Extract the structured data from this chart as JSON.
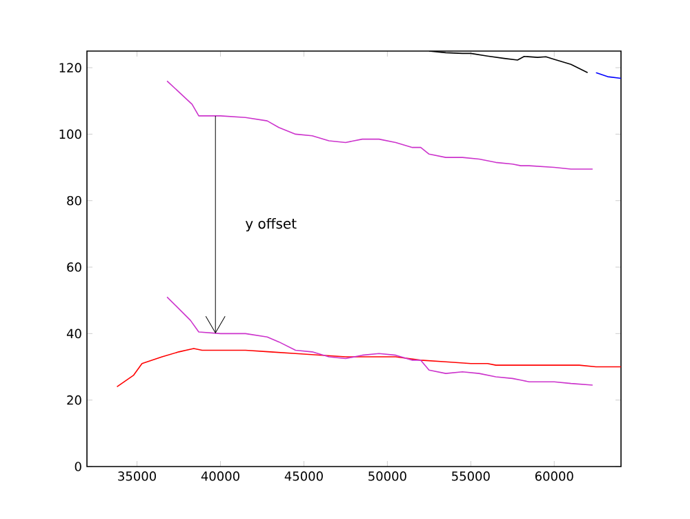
{
  "chart_data": {
    "type": "line",
    "xlim": [
      32000,
      64000
    ],
    "ylim": [
      0,
      125
    ],
    "xticks": [
      35000,
      40000,
      45000,
      50000,
      55000,
      60000
    ],
    "yticks": [
      0,
      20,
      40,
      60,
      80,
      100,
      120
    ],
    "grid": false,
    "marker": "none",
    "line_style": "solid",
    "series": [
      {
        "color": "#ff0000",
        "x": [
          33800,
          34800,
          35300,
          36500,
          37500,
          38400,
          38900,
          40000,
          41500,
          43000,
          44500,
          46000,
          47500,
          49000,
          50500,
          52000,
          53500,
          55000,
          56000,
          56500,
          57500,
          58500,
          60000,
          61500,
          62500,
          64000
        ],
        "values": [
          24,
          27.5,
          31,
          33,
          34.5,
          35.5,
          35,
          35,
          35,
          34.5,
          34,
          33.5,
          33,
          33,
          33,
          32,
          31.5,
          31,
          31,
          30.5,
          30.5,
          30.5,
          30.5,
          30.5,
          30,
          30
        ]
      },
      {
        "color": "#cc33cc",
        "x": [
          36800,
          38300,
          38700,
          40000,
          41500,
          42800,
          43500,
          44500,
          45500,
          46500,
          47500,
          48500,
          49500,
          50500,
          51500,
          52000,
          52500,
          53500,
          54500,
          55500,
          56500,
          57500,
          58000,
          58500,
          60000,
          61000,
          62300
        ],
        "values": [
          116,
          109,
          105.5,
          105.5,
          105,
          104,
          102,
          100,
          99.5,
          98,
          97.5,
          98.5,
          98.5,
          97.5,
          96,
          96,
          94,
          93,
          93,
          92.5,
          91.5,
          91,
          90.5,
          90.5,
          90,
          89.5,
          89.5
        ]
      },
      {
        "color": "#cc33cc",
        "x": [
          36800,
          38200,
          38700,
          40000,
          41500,
          42800,
          43500,
          44500,
          45500,
          46500,
          47500,
          48500,
          49500,
          50500,
          51500,
          52000,
          52500,
          53500,
          54500,
          55500,
          56500,
          57500,
          58000,
          58500,
          60000,
          61000,
          62300
        ],
        "values": [
          51,
          44,
          40.5,
          40,
          40,
          39,
          37.5,
          35,
          34.5,
          33,
          32.5,
          33.5,
          34,
          33.5,
          32,
          32,
          29,
          28,
          28.5,
          28,
          27,
          26.5,
          26,
          25.5,
          25.5,
          25,
          24.5
        ]
      },
      {
        "color": "#000000",
        "x": [
          52500,
          53500,
          54500,
          55000,
          56000,
          57000,
          57800,
          58200,
          59000,
          59500,
          60000,
          61000,
          62000
        ],
        "values": [
          125,
          124.5,
          124.3,
          124.3,
          123.5,
          122.8,
          122.3,
          123.4,
          123.1,
          123.3,
          122.5,
          121,
          118.5
        ]
      },
      {
        "color": "#0000ff",
        "x": [
          62500,
          63200,
          64000
        ],
        "values": [
          118.5,
          117.3,
          116.8
        ]
      }
    ],
    "annotations": [
      "y offset"
    ]
  }
}
